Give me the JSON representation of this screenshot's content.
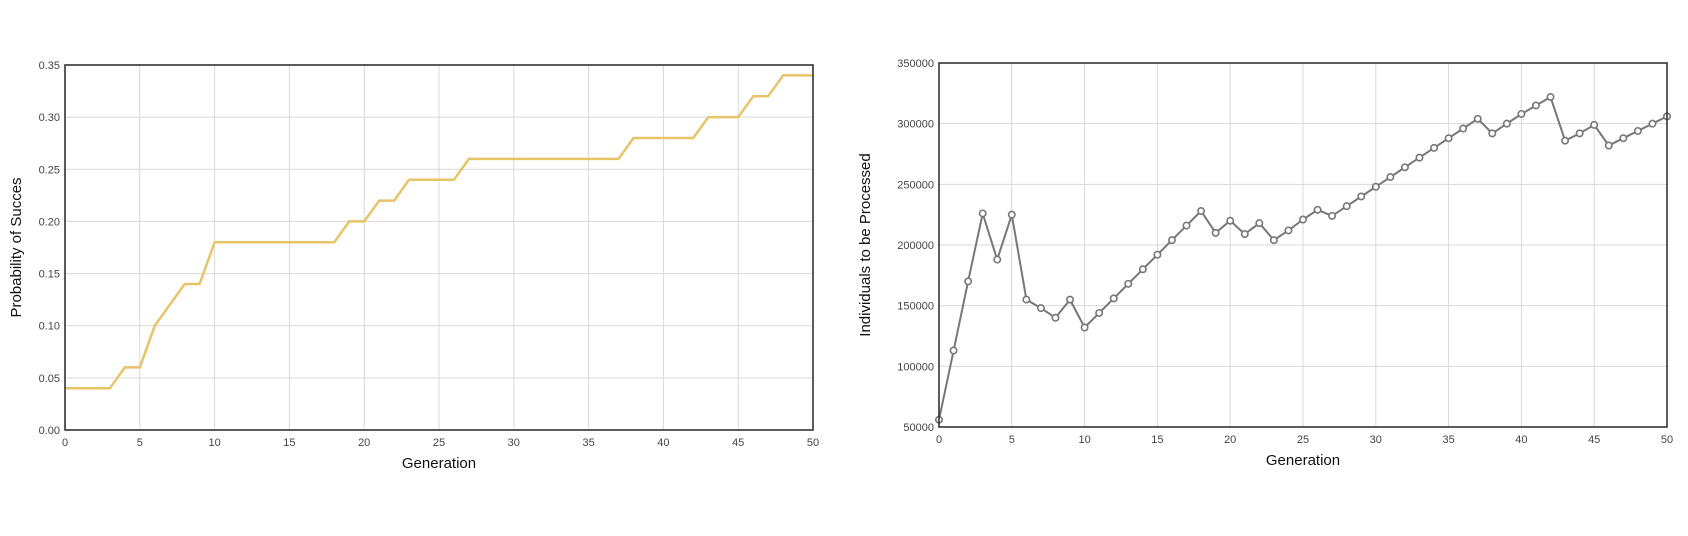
{
  "chart_data": [
    {
      "type": "line",
      "title": "",
      "xlabel": "Generation",
      "ylabel": "Probability of Succes",
      "xlim": [
        0,
        50
      ],
      "ylim": [
        0,
        0.35
      ],
      "xticks": [
        "0",
        "5",
        "10",
        "15",
        "20",
        "25",
        "30",
        "35",
        "40",
        "45",
        "50"
      ],
      "yticks": [
        "0.00",
        "0.05",
        "0.10",
        "0.15",
        "0.20",
        "0.25",
        "0.30",
        "0.35"
      ],
      "grid": true,
      "markers": false,
      "color": "#e8c468",
      "x": [
        0,
        1,
        2,
        3,
        4,
        5,
        6,
        7,
        8,
        9,
        10,
        11,
        12,
        13,
        14,
        15,
        16,
        17,
        18,
        19,
        20,
        21,
        22,
        23,
        24,
        25,
        26,
        27,
        28,
        29,
        30,
        31,
        32,
        33,
        34,
        35,
        36,
        37,
        38,
        39,
        40,
        41,
        42,
        43,
        44,
        45,
        46,
        47,
        48,
        49,
        50
      ],
      "values": [
        0.04,
        0.04,
        0.04,
        0.04,
        0.06,
        0.06,
        0.1,
        0.12,
        0.14,
        0.14,
        0.18,
        0.18,
        0.18,
        0.18,
        0.18,
        0.18,
        0.18,
        0.18,
        0.18,
        0.2,
        0.2,
        0.22,
        0.22,
        0.24,
        0.24,
        0.24,
        0.24,
        0.26,
        0.26,
        0.26,
        0.26,
        0.26,
        0.26,
        0.26,
        0.26,
        0.26,
        0.26,
        0.26,
        0.28,
        0.28,
        0.28,
        0.28,
        0.28,
        0.3,
        0.3,
        0.3,
        0.32,
        0.32,
        0.34,
        0.34,
        0.34
      ]
    },
    {
      "type": "line",
      "title": "",
      "xlabel": "Generation",
      "ylabel": "Individuals to be Processed",
      "xlim": [
        0,
        50
      ],
      "ylim": [
        50000,
        350000
      ],
      "xticks": [
        "0",
        "5",
        "10",
        "15",
        "20",
        "25",
        "30",
        "35",
        "40",
        "45",
        "50"
      ],
      "yticks": [
        "50000",
        "100000",
        "150000",
        "200000",
        "250000",
        "300000",
        "350000"
      ],
      "grid": true,
      "markers": true,
      "color": "#777777",
      "x": [
        0,
        1,
        2,
        3,
        4,
        5,
        6,
        7,
        8,
        9,
        10,
        11,
        12,
        13,
        14,
        15,
        16,
        17,
        18,
        19,
        20,
        21,
        22,
        23,
        24,
        25,
        26,
        27,
        28,
        29,
        30,
        31,
        32,
        33,
        34,
        35,
        36,
        37,
        38,
        39,
        40,
        41,
        42,
        43,
        44,
        45,
        46,
        47,
        48,
        49,
        50
      ],
      "values": [
        56000,
        113000,
        170000,
        226000,
        188000,
        225000,
        155000,
        148000,
        140000,
        155000,
        132000,
        144000,
        156000,
        168000,
        180000,
        192000,
        204000,
        216000,
        228000,
        210000,
        220000,
        209000,
        218000,
        204000,
        212000,
        221000,
        229000,
        224000,
        232000,
        240000,
        248000,
        256000,
        264000,
        272000,
        280000,
        288000,
        296000,
        304000,
        292000,
        300000,
        308000,
        315000,
        322000,
        286000,
        292000,
        299000,
        282000,
        288000,
        294000,
        300000,
        306000
      ]
    }
  ]
}
